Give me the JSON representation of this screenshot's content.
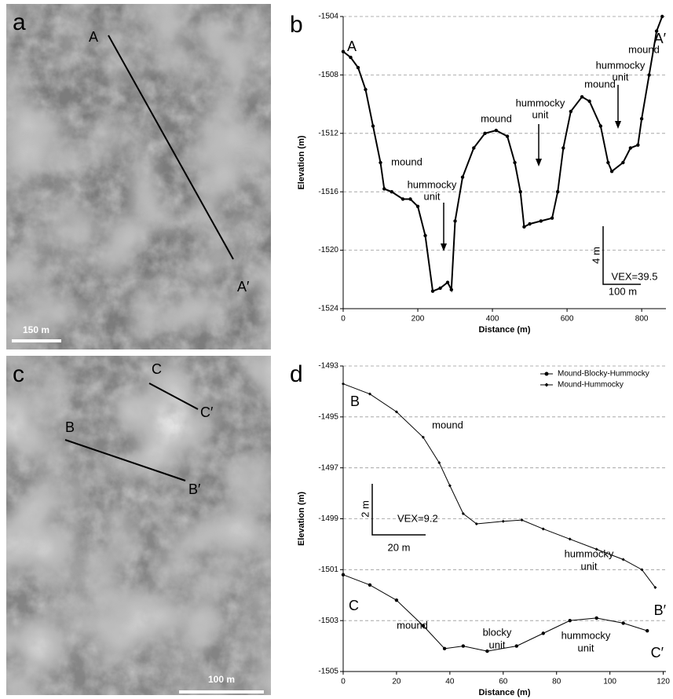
{
  "images": [
    {
      "panel_label": "a",
      "labels": [
        "A",
        "A′"
      ],
      "scale_bar": "150 m"
    },
    {
      "panel_label": "c",
      "labels": [
        "C",
        "C′",
        "B",
        "B′"
      ],
      "scale_bar": "100 m"
    }
  ],
  "chart_data": [
    {
      "type": "line",
      "panel_label": "b",
      "x_label": "Distance (m)",
      "y_label": "Elevation (m)",
      "xlim": [
        0,
        865
      ],
      "ylim": [
        -1524,
        -1504
      ],
      "xticks": [
        0,
        200,
        400,
        600,
        800
      ],
      "yticks": [
        -1524,
        -1520,
        -1516,
        -1512,
        -1508,
        -1504
      ],
      "grid": true,
      "series": [
        {
          "color": "#000000",
          "marker": "circle",
          "x": [
            0,
            20,
            40,
            60,
            80,
            100,
            110,
            130,
            160,
            180,
            200,
            220,
            240,
            260,
            280,
            290,
            300,
            320,
            350,
            380,
            410,
            440,
            460,
            475,
            485,
            500,
            530,
            560,
            575,
            590,
            610,
            640,
            660,
            690,
            710,
            720,
            750,
            770,
            790,
            800,
            820,
            840,
            855
          ],
          "values": [
            -1506.4,
            -1506.8,
            -1507.5,
            -1509,
            -1511.5,
            -1514,
            -1515.8,
            -1516,
            -1516.5,
            -1516.5,
            -1517,
            -1519,
            -1522.8,
            -1522.6,
            -1522.2,
            -1522.7,
            -1518,
            -1515,
            -1513,
            -1512,
            -1511.8,
            -1512.2,
            -1514,
            -1516,
            -1518.4,
            -1518.2,
            -1518,
            -1517.8,
            -1516,
            -1513,
            -1510.5,
            -1509.5,
            -1509.8,
            -1511.5,
            -1514,
            -1514.6,
            -1514,
            -1513,
            -1512.8,
            -1511,
            -1508,
            -1505,
            -1504
          ]
        }
      ],
      "annotations": [
        "A",
        "A′",
        "mound",
        "hummocky",
        "unit",
        "mound",
        "hummocky",
        "unit",
        "mound",
        "hummocky",
        "unit",
        "mound",
        "VEX=39.5",
        "4 m",
        "100 m"
      ]
    },
    {
      "type": "line",
      "panel_label": "d",
      "x_label": "Distance (m)",
      "y_label": "Elevation (m)",
      "xlim": [
        0,
        121
      ],
      "ylim": [
        -1505,
        -1493
      ],
      "xticks": [
        0,
        20,
        40,
        60,
        80,
        100,
        120
      ],
      "yticks": [
        -1505,
        -1503,
        -1501,
        -1499,
        -1497,
        -1495,
        -1493
      ],
      "grid": true,
      "legend": "upper right",
      "series": [
        {
          "name": "Mound-Blocky-Hummocky",
          "color": "#000000",
          "marker": "circle",
          "x": [
            0,
            10,
            20,
            30,
            38,
            45,
            54,
            65,
            75,
            85,
            95,
            105,
            114
          ],
          "values": [
            -1501.2,
            -1501.6,
            -1502.2,
            -1503.2,
            -1504.1,
            -1504.0,
            -1504.2,
            -1504.0,
            -1503.5,
            -1503.0,
            -1502.9,
            -1503.1,
            -1503.4
          ]
        },
        {
          "name": "Mound-Hummocky",
          "color": "#000000",
          "marker": "diamond",
          "x": [
            0,
            10,
            20,
            30,
            36,
            40,
            45,
            50,
            60,
            67,
            75,
            85,
            95,
            105,
            112,
            117
          ],
          "values": [
            -1493.7,
            -1494.1,
            -1494.8,
            -1495.8,
            -1496.8,
            -1497.7,
            -1498.8,
            -1499.2,
            -1499.1,
            -1499.05,
            -1499.4,
            -1499.8,
            -1500.2,
            -1500.6,
            -1501,
            -1501.7
          ]
        }
      ],
      "annotations": [
        "B",
        "B′",
        "C",
        "C′",
        "mound",
        "mound",
        "hummocky",
        "unit",
        "blocky",
        "unit",
        "hummocky",
        "unit",
        "VEX=9.2",
        "2 m",
        "20 m"
      ]
    }
  ]
}
